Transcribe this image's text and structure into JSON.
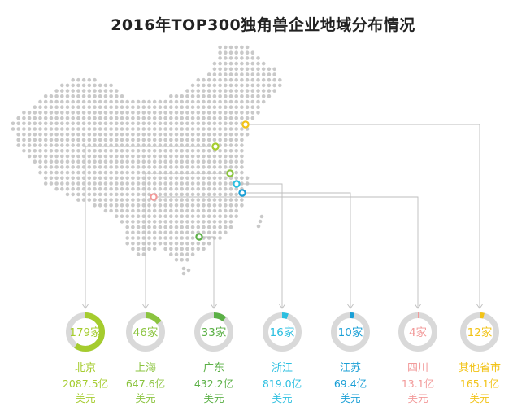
{
  "title": "2016年TOP300独角兽企业地域分布情况",
  "chart_data": {
    "type": "donut",
    "title": "2016年TOP300独角兽企业地域分布情况",
    "total": 300,
    "count_suffix": "家",
    "items": [
      {
        "region": "北京",
        "count": 179,
        "count_label": "179家",
        "value_line": "2087.5亿",
        "unit_line": "美元",
        "color": "#a5cc2e"
      },
      {
        "region": "上海",
        "count": 46,
        "count_label": "46家",
        "value_line": "647.6亿",
        "unit_line": "美元",
        "color": "#8bc43f"
      },
      {
        "region": "广东",
        "count": 33,
        "count_label": "33家",
        "value_line": "432.2亿",
        "unit_line": "美元",
        "color": "#5bb046"
      },
      {
        "region": "浙江",
        "count": 16,
        "count_label": "16家",
        "value_line": "819.0亿",
        "unit_line": "美元",
        "color": "#2bbfe0"
      },
      {
        "region": "江苏",
        "count": 10,
        "count_label": "10家",
        "value_line": "69.4亿",
        "unit_line": "美元",
        "color": "#1a9fd6"
      },
      {
        "region": "四川",
        "count": 4,
        "count_label": "4家",
        "value_line": "13.1亿",
        "unit_line": "美元",
        "color": "#f29a9a"
      },
      {
        "region": "其他省市",
        "count": 12,
        "count_label": "12家",
        "value_line": "165.1亿",
        "unit_line": "美元",
        "color": "#f2c318"
      }
    ]
  },
  "colors": {
    "track": "#d9d9d9",
    "map_dot": "#c9c9c9",
    "connector": "#bdbdbd",
    "title": "#222222"
  }
}
